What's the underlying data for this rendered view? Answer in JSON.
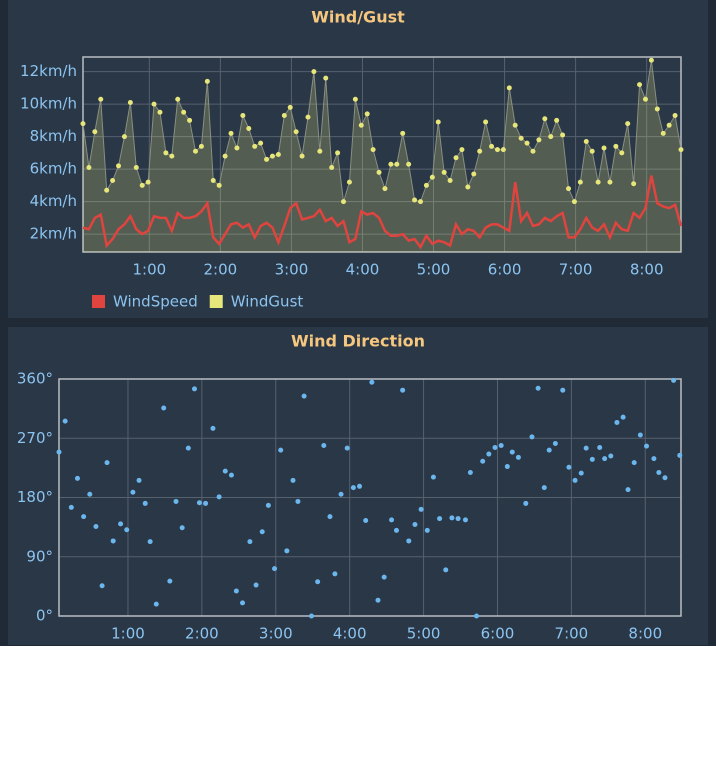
{
  "chart_data": [
    {
      "type": "line",
      "title": "Wind/Gust",
      "x": [
        4,
        9,
        14,
        19,
        24,
        29,
        34,
        39,
        44,
        49,
        54,
        59,
        64,
        69,
        74,
        79,
        84,
        89,
        94,
        99,
        104,
        109,
        114,
        119,
        124,
        129,
        134,
        139,
        144,
        149,
        154,
        159,
        164,
        169,
        174,
        179,
        184,
        189,
        194,
        199,
        204,
        209,
        214,
        219,
        224,
        229,
        234,
        239,
        244,
        249,
        254,
        259,
        264,
        269,
        274,
        279,
        284,
        289,
        294,
        299,
        304,
        309,
        314,
        319,
        324,
        329,
        334,
        339,
        344,
        349,
        354,
        359,
        364,
        369,
        374,
        379,
        384,
        389,
        394,
        399,
        404,
        409,
        414,
        419,
        424,
        429,
        434,
        439,
        444,
        449,
        454,
        459,
        464,
        469,
        474,
        479,
        484,
        489,
        494,
        499,
        504,
        509
      ],
      "series": [
        {
          "name": "WindSpeed",
          "color": "#e0443e",
          "markers": false,
          "area": false,
          "values": [
            2.4,
            2.3,
            3.0,
            3.2,
            1.3,
            1.7,
            2.3,
            2.6,
            3.1,
            2.3,
            2.0,
            2.2,
            3.1,
            3.0,
            3.0,
            2.2,
            3.3,
            3.0,
            3.0,
            3.1,
            3.4,
            3.9,
            1.8,
            1.4,
            2.0,
            2.6,
            2.7,
            2.4,
            2.6,
            1.8,
            2.5,
            2.7,
            2.4,
            1.5,
            2.5,
            3.6,
            3.9,
            2.9,
            3.0,
            3.1,
            3.5,
            2.8,
            3.0,
            2.5,
            2.8,
            1.5,
            1.7,
            3.4,
            3.2,
            3.3,
            3.0,
            2.2,
            1.9,
            1.9,
            2.0,
            1.6,
            1.7,
            1.2,
            1.9,
            1.4,
            1.6,
            1.5,
            1.3,
            2.6,
            2.0,
            2.3,
            2.2,
            1.8,
            2.4,
            2.6,
            2.6,
            2.4,
            2.2,
            5.2,
            2.8,
            3.3,
            2.5,
            2.6,
            3.0,
            2.8,
            3.1,
            3.3,
            1.8,
            1.8,
            2.3,
            3.0,
            2.4,
            2.2,
            2.6,
            1.8,
            2.7,
            2.3,
            2.2,
            3.3,
            3.0,
            3.6,
            5.6,
            3.9,
            3.7,
            3.6,
            3.8,
            2.5
          ]
        },
        {
          "name": "WindGust",
          "color": "#e6e67a",
          "markers": true,
          "area": true,
          "values": [
            8.8,
            6.1,
            8.3,
            10.3,
            4.7,
            5.3,
            6.2,
            8.0,
            10.1,
            6.1,
            5.0,
            5.2,
            10.0,
            9.5,
            7.0,
            6.8,
            10.3,
            9.5,
            9.0,
            7.1,
            7.4,
            11.4,
            5.3,
            5.0,
            6.8,
            8.2,
            7.3,
            9.3,
            8.5,
            7.4,
            7.6,
            6.6,
            6.8,
            6.9,
            9.3,
            9.8,
            8.3,
            6.8,
            9.2,
            12.0,
            7.1,
            11.6,
            6.1,
            7.0,
            4.0,
            5.2,
            10.3,
            8.7,
            9.4,
            7.2,
            5.8,
            4.8,
            6.3,
            6.3,
            8.2,
            6.3,
            4.1,
            4.0,
            5.0,
            5.5,
            8.9,
            5.8,
            5.3,
            6.7,
            7.2,
            4.9,
            5.7,
            7.1,
            8.9,
            7.4,
            7.2,
            7.2,
            11.0,
            8.7,
            7.9,
            7.6,
            7.1,
            7.8,
            9.1,
            8.0,
            9.0,
            8.1,
            4.8,
            4.0,
            5.2,
            7.7,
            7.1,
            5.2,
            7.3,
            5.2,
            7.4,
            7.0,
            8.8,
            5.1,
            11.2,
            10.3,
            12.7,
            9.7,
            8.2,
            8.7,
            9.3,
            7.2
          ]
        }
      ],
      "xlim": [
        4,
        509
      ],
      "xticks": [
        {
          "value": 60,
          "label": "1:00"
        },
        {
          "value": 120,
          "label": "2:00"
        },
        {
          "value": 180,
          "label": "3:00"
        },
        {
          "value": 240,
          "label": "4:00"
        },
        {
          "value": 300,
          "label": "5:00"
        },
        {
          "value": 360,
          "label": "6:00"
        },
        {
          "value": 420,
          "label": "7:00"
        },
        {
          "value": 480,
          "label": "8:00"
        }
      ],
      "ylim": [
        0.9,
        12.9
      ],
      "yticks": [
        {
          "value": 2,
          "label": "2km/h"
        },
        {
          "value": 4,
          "label": "4km/h"
        },
        {
          "value": 6,
          "label": "6km/h"
        },
        {
          "value": 8,
          "label": "8km/h"
        },
        {
          "value": 10,
          "label": "10km/h"
        },
        {
          "value": 12,
          "label": "12km/h"
        }
      ],
      "grid": true,
      "legend": "bottom-left"
    },
    {
      "type": "scatter",
      "title": "Wind Direction",
      "color": "#6cb6ee",
      "x": [
        4,
        9,
        14,
        19,
        24,
        29,
        34,
        39,
        43,
        48,
        54,
        59,
        64,
        69,
        74,
        78,
        83,
        89,
        94,
        99,
        104,
        109,
        114,
        118,
        123,
        129,
        134,
        139,
        144,
        148,
        153,
        159,
        164,
        169,
        174,
        179,
        184,
        189,
        194,
        198,
        203,
        209,
        214,
        219,
        224,
        228,
        233,
        238,
        243,
        248,
        253,
        258,
        263,
        268,
        274,
        278,
        283,
        288,
        293,
        298,
        303,
        308,
        313,
        318,
        323,
        328,
        334,
        338,
        343,
        348,
        353,
        358,
        363,
        368,
        372,
        377,
        383,
        388,
        393,
        398,
        402,
        407,
        413,
        418,
        423,
        428,
        432,
        437,
        443,
        447,
        452,
        457,
        462,
        466,
        471,
        476,
        481,
        487,
        491,
        496,
        503,
        508
      ],
      "values": [
        249,
        296,
        165,
        209,
        151,
        185,
        136,
        46,
        233,
        114,
        140,
        131,
        188,
        206,
        171,
        113,
        18,
        316,
        53,
        174,
        134,
        255,
        345,
        172,
        171,
        285,
        181,
        220,
        214,
        38,
        20,
        113,
        47,
        128,
        168,
        72,
        252,
        99,
        206,
        174,
        334,
        0,
        52,
        259,
        151,
        64,
        185,
        255,
        195,
        197,
        145,
        355,
        24,
        59,
        146,
        130,
        343,
        114,
        139,
        162,
        130,
        211,
        148,
        70,
        149,
        148,
        146,
        218,
        0,
        235,
        246,
        256,
        259,
        227,
        249,
        241,
        171,
        272,
        346,
        195,
        252,
        262,
        343,
        226,
        206,
        217,
        255,
        238,
        256,
        239,
        243,
        294,
        302,
        192,
        233,
        275,
        258,
        239,
        218,
        210,
        358,
        244
      ],
      "xlim": [
        4,
        509
      ],
      "xticks": [
        {
          "value": 60,
          "label": "1:00"
        },
        {
          "value": 120,
          "label": "2:00"
        },
        {
          "value": 180,
          "label": "3:00"
        },
        {
          "value": 240,
          "label": "4:00"
        },
        {
          "value": 300,
          "label": "5:00"
        },
        {
          "value": 360,
          "label": "6:00"
        },
        {
          "value": 420,
          "label": "7:00"
        },
        {
          "value": 480,
          "label": "8:00"
        }
      ],
      "ylim": [
        0,
        360
      ],
      "yticks": [
        {
          "value": 0,
          "label": "0°"
        },
        {
          "value": 90,
          "label": "90°"
        },
        {
          "value": 180,
          "label": "180°"
        },
        {
          "value": 270,
          "label": "270°"
        },
        {
          "value": 360,
          "label": "360°"
        }
      ],
      "grid": true
    }
  ]
}
